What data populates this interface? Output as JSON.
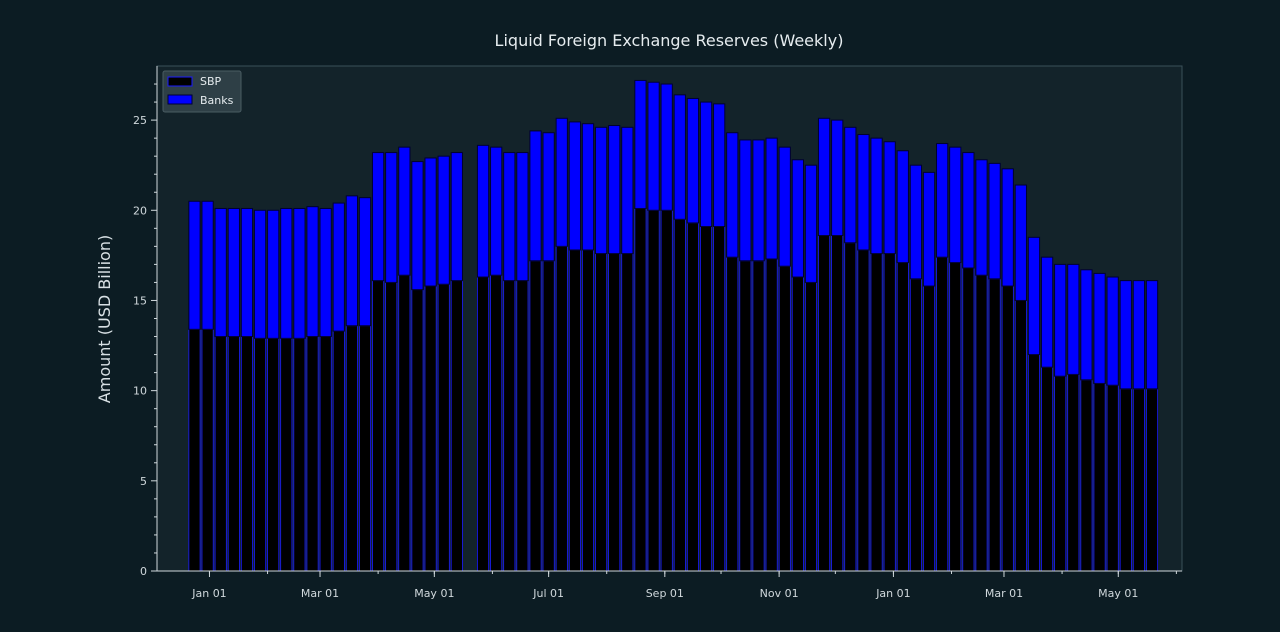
{
  "theme": {
    "background": "#0c1c23",
    "plot_background": "#13232a",
    "axis_color": "#d0d8dc",
    "frame_color": "#3a5058",
    "sbp_color": "#000000",
    "banks_color": "#0000ff",
    "bar_edge": "#000033"
  },
  "chart_data": {
    "type": "bar",
    "stacked": true,
    "title": "Liquid Foreign Exchange Reserves (Weekly)",
    "xlabel": "",
    "ylabel": "Amount (USD Billion)",
    "ylim": [
      0,
      28
    ],
    "yticks": [
      0,
      5,
      10,
      15,
      20,
      25
    ],
    "xlim": [
      "2021-12-04",
      "2023-06-04"
    ],
    "xticks": [
      {
        "date": "2022-01-01",
        "label": "Jan 01"
      },
      {
        "date": "2022-03-01",
        "label": "Mar 01"
      },
      {
        "date": "2022-05-01",
        "label": "May 01"
      },
      {
        "date": "2022-07-01",
        "label": "Jul 01"
      },
      {
        "date": "2022-09-01",
        "label": "Sep 01"
      },
      {
        "date": "2022-11-01",
        "label": "Nov 01"
      },
      {
        "date": "2023-01-01",
        "label": "Jan 01"
      },
      {
        "date": "2023-03-01",
        "label": "Mar 01"
      },
      {
        "date": "2023-05-01",
        "label": "May 01"
      }
    ],
    "legend_position": "top-left",
    "grid": false,
    "x": [
      "2021-12-24",
      "2021-12-31",
      "2022-01-07",
      "2022-01-14",
      "2022-01-21",
      "2022-01-28",
      "2022-02-04",
      "2022-02-11",
      "2022-02-18",
      "2022-02-25",
      "2022-03-04",
      "2022-03-11",
      "2022-03-18",
      "2022-03-25",
      "2022-04-01",
      "2022-04-08",
      "2022-04-15",
      "2022-04-22",
      "2022-04-29",
      "2022-05-06",
      "2022-05-13",
      "2022-05-27",
      "2022-06-03",
      "2022-06-10",
      "2022-06-17",
      "2022-06-24",
      "2022-07-01",
      "2022-07-08",
      "2022-07-15",
      "2022-07-22",
      "2022-07-29",
      "2022-08-05",
      "2022-08-12",
      "2022-08-19",
      "2022-08-26",
      "2022-09-02",
      "2022-09-09",
      "2022-09-16",
      "2022-09-23",
      "2022-09-30",
      "2022-10-07",
      "2022-10-14",
      "2022-10-21",
      "2022-10-28",
      "2022-11-04",
      "2022-11-11",
      "2022-11-18",
      "2022-11-25",
      "2022-12-02",
      "2022-12-09",
      "2022-12-16",
      "2022-12-23",
      "2022-12-30",
      "2023-01-06",
      "2023-01-13",
      "2023-01-20",
      "2023-01-27",
      "2023-02-03",
      "2023-02-10",
      "2023-02-17",
      "2023-02-24",
      "2023-03-03",
      "2023-03-10",
      "2023-03-17",
      "2023-03-24",
      "2023-03-31",
      "2023-04-07",
      "2023-04-14",
      "2023-04-21",
      "2023-04-28",
      "2023-05-05",
      "2023-05-12",
      "2023-05-19"
    ],
    "series": [
      {
        "name": "SBP",
        "values": [
          13.4,
          13.4,
          13.0,
          13.0,
          13.0,
          12.9,
          12.9,
          12.9,
          12.9,
          13.0,
          13.0,
          13.3,
          13.6,
          13.6,
          16.1,
          16.0,
          16.4,
          15.6,
          15.8,
          15.9,
          16.1,
          16.3,
          16.4,
          16.1,
          16.1,
          17.2,
          17.2,
          18.0,
          17.8,
          17.8,
          17.6,
          17.6,
          17.6,
          20.1,
          20.0,
          20.0,
          19.5,
          19.3,
          19.1,
          19.1,
          17.4,
          17.2,
          17.2,
          17.3,
          16.9,
          16.3,
          16.0,
          18.6,
          18.6,
          18.2,
          17.8,
          17.6,
          17.6,
          17.1,
          16.2,
          15.8,
          17.4,
          17.1,
          16.8,
          16.4,
          16.2,
          15.8,
          15.0,
          12.0,
          11.3,
          10.8,
          10.9,
          10.6,
          10.4,
          10.3,
          10.1,
          10.1,
          10.1
        ]
      },
      {
        "name": "Banks",
        "values": [
          7.1,
          7.1,
          7.1,
          7.1,
          7.1,
          7.1,
          7.1,
          7.2,
          7.2,
          7.2,
          7.1,
          7.1,
          7.2,
          7.1,
          7.1,
          7.2,
          7.1,
          7.1,
          7.1,
          7.1,
          7.1,
          7.3,
          7.1,
          7.1,
          7.1,
          7.2,
          7.1,
          7.1,
          7.1,
          7.0,
          7.0,
          7.1,
          7.0,
          7.1,
          7.1,
          7.0,
          6.9,
          6.9,
          6.9,
          6.8,
          6.9,
          6.7,
          6.7,
          6.7,
          6.6,
          6.5,
          6.5,
          6.5,
          6.4,
          6.4,
          6.4,
          6.4,
          6.2,
          6.2,
          6.3,
          6.3,
          6.3,
          6.4,
          6.4,
          6.4,
          6.4,
          6.5,
          6.4,
          6.5,
          6.1,
          6.2,
          6.1,
          6.1,
          6.1,
          6.0,
          6.0,
          6.0,
          6.0
        ]
      }
    ]
  }
}
